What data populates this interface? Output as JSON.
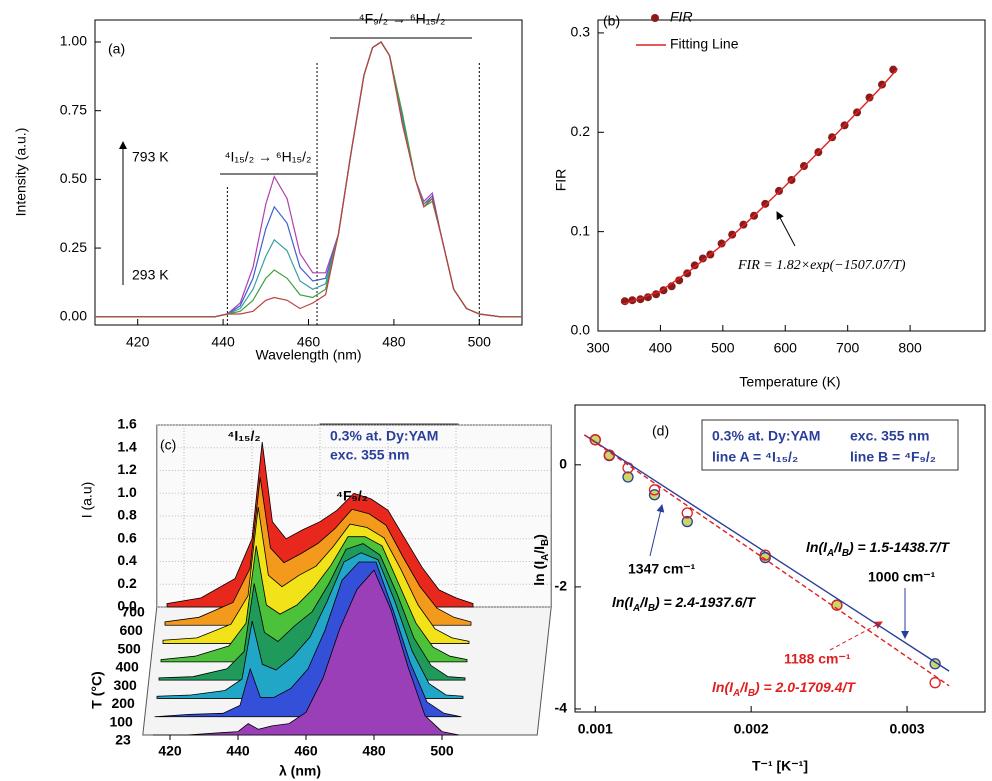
{
  "chart_data": [
    {
      "type": "line",
      "xlabel": "Wavelength (nm)",
      "ylabel": "Intensity (a.u.)",
      "annotations": [
        "(a)",
        "⁴I₁₅/₂ → ⁶H₁₅/₂",
        "⁴F₉/₂ → ⁶H₁₅/₂",
        "793 K",
        "293 K"
      ],
      "x": [
        410,
        420,
        430,
        438,
        441,
        444,
        447,
        450,
        452,
        455,
        458,
        461,
        464,
        467,
        470,
        473,
        475,
        477,
        479,
        482,
        485,
        487,
        489,
        491,
        494,
        497,
        500,
        505,
        510
      ],
      "series": [
        {
          "color": "#b03fb0",
          "values": [
            0,
            0,
            0,
            0,
            0.01,
            0.05,
            0.18,
            0.41,
            0.51,
            0.43,
            0.23,
            0.16,
            0.16,
            0.3,
            0.6,
            0.88,
            0.98,
            1.0,
            0.95,
            0.72,
            0.5,
            0.42,
            0.45,
            0.3,
            0.1,
            0.03,
            0.01,
            0,
            0
          ]
        },
        {
          "color": "#4060d0",
          "values": [
            0,
            0,
            0,
            0,
            0.01,
            0.04,
            0.14,
            0.32,
            0.4,
            0.34,
            0.18,
            0.13,
            0.14,
            0.3,
            0.6,
            0.88,
            0.98,
            1.0,
            0.95,
            0.73,
            0.5,
            0.41,
            0.44,
            0.3,
            0.1,
            0.03,
            0.01,
            0,
            0
          ]
        },
        {
          "color": "#3aa0a0",
          "values": [
            0,
            0,
            0,
            0,
            0.01,
            0.03,
            0.1,
            0.22,
            0.28,
            0.24,
            0.13,
            0.1,
            0.12,
            0.3,
            0.6,
            0.88,
            0.98,
            1.0,
            0.95,
            0.71,
            0.5,
            0.41,
            0.43,
            0.3,
            0.1,
            0.03,
            0.01,
            0,
            0
          ]
        },
        {
          "color": "#40a040",
          "values": [
            0,
            0,
            0,
            0,
            0.01,
            0.02,
            0.06,
            0.14,
            0.17,
            0.14,
            0.08,
            0.07,
            0.1,
            0.3,
            0.6,
            0.88,
            0.98,
            1.0,
            0.95,
            0.74,
            0.5,
            0.4,
            0.42,
            0.3,
            0.1,
            0.03,
            0.01,
            0,
            0
          ]
        },
        {
          "color": "#c04040",
          "values": [
            0,
            0,
            0,
            0,
            0.01,
            0.01,
            0.02,
            0.06,
            0.07,
            0.06,
            0.03,
            0.05,
            0.08,
            0.3,
            0.6,
            0.88,
            0.98,
            1.0,
            0.95,
            0.7,
            0.5,
            0.4,
            0.43,
            0.3,
            0.1,
            0.03,
            0.01,
            0,
            0
          ]
        }
      ],
      "vlines": [
        441,
        462,
        500
      ],
      "xlim": [
        410,
        510
      ],
      "ylim": [
        -0.03,
        1.08
      ],
      "xticks": [
        420,
        440,
        460,
        480,
        500
      ],
      "yticks": [
        {
          "value": 0,
          "label": "0.00"
        },
        {
          "value": 0.25,
          "label": "0.25"
        },
        {
          "value": 0.5,
          "label": "0.50"
        },
        {
          "value": 0.75,
          "label": "0.75"
        },
        {
          "value": 1,
          "label": "1.00"
        }
      ]
    },
    {
      "type": "scatter",
      "xlabel": "Temperature (K)",
      "ylabel": "FIR",
      "annotations": [
        "(b)",
        "FIR = 1.82×exp(−1507.07/T)"
      ],
      "series": [
        {
          "name": "FIR",
          "color": "#8b1a1a",
          "mark": "dot",
          "x": [
            343,
            355,
            368,
            380,
            393,
            405,
            418,
            430,
            443,
            455,
            468,
            480,
            498,
            515,
            533,
            550,
            568,
            590,
            610,
            630,
            653,
            675,
            695,
            715,
            735,
            755,
            773
          ],
          "values": [
            0.03,
            0.031,
            0.032,
            0.034,
            0.037,
            0.041,
            0.045,
            0.051,
            0.058,
            0.066,
            0.073,
            0.077,
            0.088,
            0.097,
            0.107,
            0.116,
            0.128,
            0.141,
            0.152,
            0.166,
            0.18,
            0.195,
            0.207,
            0.22,
            0.235,
            0.248,
            0.263
          ]
        },
        {
          "name": "Fitting Line",
          "color": "#e02020",
          "mark": "line",
          "x": [
            340,
            400,
            450,
            500,
            550,
            600,
            650,
            700,
            750,
            780
          ],
          "values": [
            0.027,
            0.04,
            0.062,
            0.087,
            0.116,
            0.146,
            0.178,
            0.21,
            0.243,
            0.264
          ]
        }
      ],
      "xlim": [
        300,
        920
      ],
      "ylim": [
        0,
        0.313
      ],
      "xticks": [
        300,
        400,
        500,
        600,
        700,
        800
      ],
      "yticks": [
        {
          "value": 0,
          "label": "0.0"
        },
        0.1,
        0.2,
        0.3
      ]
    },
    {
      "type": "waterfall",
      "xlabel": "λ (nm)",
      "ylabel": "I (a.u)",
      "zlabel": "T (°C)",
      "annotations": [
        "(c)",
        "⁴I₁₅/₂",
        "⁴F₉/₂",
        "0.3% at. Dy:YAM",
        "exc. 355 nm"
      ],
      "categories": [
        "23",
        "100",
        "200",
        "300",
        "400",
        "500",
        "600",
        "700"
      ],
      "x": [
        415,
        425,
        435,
        440,
        443,
        446,
        450,
        455,
        460,
        465,
        470,
        475,
        480,
        485,
        490,
        495,
        500,
        505
      ],
      "series": [
        {
          "color": "#9a3fb8",
          "values": [
            0,
            0,
            0.02,
            0.03,
            0.1,
            0.05,
            0.08,
            0.1,
            0.2,
            0.5,
            0.94,
            1.28,
            1.45,
            1.1,
            0.6,
            0.17,
            0.03,
            0
          ]
        },
        {
          "color": "#3550d8",
          "values": [
            0,
            0.02,
            0.03,
            0.1,
            0.42,
            0.17,
            0.17,
            0.25,
            0.42,
            0.76,
            1.2,
            1.36,
            1.36,
            0.94,
            0.48,
            0.13,
            0.03,
            0
          ]
        },
        {
          "color": "#22a6c8",
          "values": [
            0.02,
            0.03,
            0.07,
            0.17,
            0.68,
            0.3,
            0.25,
            0.37,
            0.54,
            0.85,
            1.2,
            1.28,
            1.22,
            0.85,
            0.42,
            0.13,
            0.03,
            0.02
          ]
        },
        {
          "color": "#1f9a5a",
          "values": [
            0.02,
            0.03,
            0.1,
            0.25,
            0.85,
            0.42,
            0.34,
            0.48,
            0.6,
            0.85,
            1.15,
            1.2,
            1.1,
            0.76,
            0.37,
            0.13,
            0.03,
            0.02
          ]
        },
        {
          "color": "#4cc23a",
          "values": [
            0.02,
            0.05,
            0.14,
            0.34,
            1.02,
            0.5,
            0.42,
            0.5,
            0.65,
            0.85,
            1.1,
            1.1,
            1.02,
            0.68,
            0.34,
            0.13,
            0.05,
            0.02
          ]
        },
        {
          "color": "#f2e21a",
          "values": [
            0.03,
            0.05,
            0.17,
            0.42,
            1.2,
            0.6,
            0.5,
            0.6,
            0.68,
            0.85,
            1.05,
            1.02,
            0.93,
            0.65,
            0.34,
            0.13,
            0.05,
            0.02
          ]
        },
        {
          "color": "#f39a1c",
          "values": [
            0.03,
            0.07,
            0.2,
            0.5,
            1.3,
            0.68,
            0.55,
            0.63,
            0.72,
            0.85,
            1.02,
            0.98,
            0.88,
            0.6,
            0.34,
            0.15,
            0.07,
            0.03
          ]
        },
        {
          "color": "#e8281c",
          "values": [
            0.03,
            0.08,
            0.25,
            0.6,
            1.45,
            0.75,
            0.6,
            0.68,
            0.75,
            0.85,
            1,
            0.95,
            0.85,
            0.6,
            0.35,
            0.15,
            0.08,
            0.03
          ]
        }
      ],
      "xlim": [
        412,
        528
      ],
      "ylim": [
        0,
        1.6
      ],
      "xticks": [
        420,
        440,
        460,
        480,
        500
      ],
      "yticks": [
        {
          "value": 0,
          "label": "0.0"
        },
        0.2,
        0.4,
        0.6,
        0.8,
        {
          "value": 1,
          "label": "1.0"
        },
        1.2,
        1.4,
        1.6
      ]
    },
    {
      "type": "scatter",
      "xlabel": "T⁻¹ [K⁻¹]",
      "ylabel": [
        "ln (I",
        "A",
        "/I",
        "B",
        ")"
      ],
      "annotations": [
        "(d)",
        "0.3% at. Dy:YAM",
        "exc. 355 nm",
        "line A = ⁴I₁₅/₂",
        "line B = ⁴F₉/₂",
        [
          "ln(I",
          "A",
          "/I",
          "B",
          ") = 1.5-1438.7/T"
        ],
        "1347 cm⁻¹",
        [
          "ln(I",
          "A",
          "/I",
          "B",
          ") = 2.4-1937.6/T"
        ],
        "1000 cm⁻¹",
        "1188 cm⁻¹",
        [
          "ln(I",
          "A",
          "/I",
          "B",
          ") = 2.0-1709.4/T"
        ]
      ],
      "series": [
        {
          "color": "#2a3f9a",
          "mark": "circle",
          "x": [
            0.001,
            0.00109,
            0.00121,
            0.00138,
            0.00159,
            0.00209,
            0.00255,
            0.00318
          ],
          "values": [
            0.41,
            0.15,
            -0.2,
            -0.49,
            -0.93,
            -1.52,
            -2.3,
            -3.26
          ]
        },
        {
          "color": "#e02020",
          "mark": "open-circle",
          "x": [
            0.001,
            0.00109,
            0.00121,
            0.00138,
            0.00159,
            0.00209,
            0.00255,
            0.00318
          ],
          "values": [
            0.41,
            0.16,
            -0.05,
            -0.41,
            -0.79,
            -1.48,
            -2.3,
            -3.57
          ]
        },
        {
          "color": "#2a3f9a",
          "mark": "line",
          "x": [
            0.00093,
            0.00327
          ],
          "values": [
            0.49,
            -3.38
          ]
        },
        {
          "color": "#e02020",
          "mark": "dashed-line",
          "x": [
            0.00093,
            0.00327
          ],
          "values": [
            0.49,
            -3.62
          ]
        }
      ],
      "xlim": [
        0.00087,
        0.0035
      ],
      "ylim": [
        -4.05,
        0.98
      ],
      "xticks": [
        0.001,
        0.002,
        0.003
      ],
      "yticks": [
        -4,
        -2,
        0
      ]
    }
  ]
}
